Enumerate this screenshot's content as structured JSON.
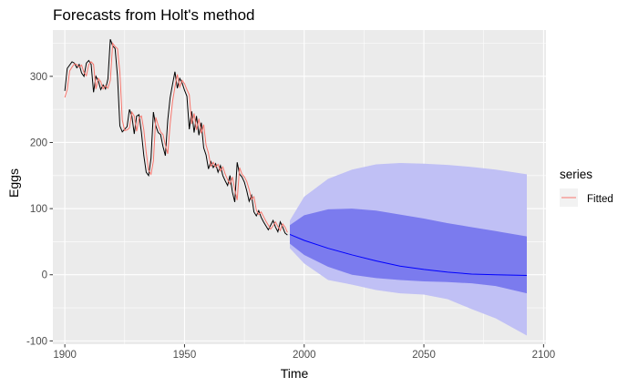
{
  "chart_data": {
    "type": "line",
    "title": "Forecasts from Holt's method",
    "xlabel": "Time",
    "ylabel": "Eggs",
    "xlim": [
      1895,
      2101
    ],
    "ylim": [
      -105,
      370
    ],
    "x_ticks": [
      1900,
      1950,
      2000,
      2050,
      2100
    ],
    "y_ticks": [
      -100,
      0,
      100,
      200,
      300
    ],
    "x_tick_labels": [
      "1900",
      "1950",
      "2000",
      "2050",
      "2100"
    ],
    "y_tick_labels": [
      "-100",
      "0",
      "100",
      "200",
      "300"
    ],
    "grid": true,
    "legend": {
      "title": "series",
      "position": "right",
      "entries": [
        {
          "label": "Fitted",
          "color": "#f8766d"
        }
      ]
    },
    "colors": {
      "panel": "#ebebeb",
      "grid_major": "#ffffff",
      "observed": "#000000",
      "fitted": "#f8766d",
      "forecast": "#0000ff",
      "band80": "#7b7bee",
      "band95": "#c0c0f5"
    },
    "observed": {
      "x": [
        1900,
        1901,
        1902,
        1903,
        1904,
        1905,
        1906,
        1907,
        1908,
        1909,
        1910,
        1911,
        1912,
        1913,
        1914,
        1915,
        1916,
        1917,
        1918,
        1919,
        1920,
        1921,
        1922,
        1923,
        1924,
        1925,
        1926,
        1927,
        1928,
        1929,
        1930,
        1931,
        1932,
        1933,
        1934,
        1935,
        1936,
        1937,
        1938,
        1939,
        1940,
        1941,
        1942,
        1943,
        1944,
        1945,
        1946,
        1947,
        1948,
        1949,
        1950,
        1951,
        1952,
        1953,
        1954,
        1955,
        1956,
        1957,
        1958,
        1959,
        1960,
        1961,
        1962,
        1963,
        1964,
        1965,
        1966,
        1967,
        1968,
        1969,
        1970,
        1971,
        1972,
        1973,
        1974,
        1975,
        1976,
        1977,
        1978,
        1979,
        1980,
        1981,
        1982,
        1983,
        1984,
        1985,
        1986,
        1987,
        1988,
        1989,
        1990,
        1991,
        1992,
        1993
      ],
      "y": [
        278,
        312,
        317,
        322,
        320,
        313,
        318,
        305,
        300,
        320,
        324,
        318,
        276,
        300,
        293,
        280,
        287,
        281,
        296,
        356,
        346,
        342,
        300,
        225,
        216,
        220,
        224,
        250,
        240,
        213,
        240,
        242,
        215,
        180,
        155,
        150,
        176,
        246,
        225,
        215,
        212,
        194,
        180,
        234,
        268,
        288,
        307,
        282,
        297,
        290,
        279,
        270,
        220,
        247,
        215,
        240,
        211,
        230,
        192,
        181,
        160,
        171,
        162,
        168,
        155,
        165,
        150,
        142,
        135,
        150,
        125,
        110,
        170,
        152,
        148,
        140,
        127,
        111,
        120,
        95,
        89,
        97,
        87,
        80,
        74,
        68,
        75,
        82,
        72,
        65,
        80,
        72,
        63,
        60
      ]
    },
    "fitted": {
      "x": [
        1900,
        1901,
        1902,
        1903,
        1904,
        1905,
        1906,
        1907,
        1908,
        1909,
        1910,
        1911,
        1912,
        1913,
        1914,
        1915,
        1916,
        1917,
        1918,
        1919,
        1920,
        1921,
        1922,
        1923,
        1924,
        1925,
        1926,
        1927,
        1928,
        1929,
        1930,
        1931,
        1932,
        1933,
        1934,
        1935,
        1936,
        1937,
        1938,
        1939,
        1940,
        1941,
        1942,
        1943,
        1944,
        1945,
        1946,
        1947,
        1948,
        1949,
        1950,
        1951,
        1952,
        1953,
        1954,
        1955,
        1956,
        1957,
        1958,
        1959,
        1960,
        1961,
        1962,
        1963,
        1964,
        1965,
        1966,
        1967,
        1968,
        1969,
        1970,
        1971,
        1972,
        1973,
        1974,
        1975,
        1976,
        1977,
        1978,
        1979,
        1980,
        1981,
        1982,
        1983,
        1984,
        1985,
        1986,
        1987,
        1988,
        1989,
        1990,
        1991,
        1992,
        1993
      ],
      "y": [
        268,
        280,
        308,
        314,
        319,
        318,
        314,
        317,
        306,
        301,
        318,
        322,
        318,
        281,
        297,
        292,
        281,
        286,
        282,
        294,
        350,
        345,
        342,
        306,
        234,
        218,
        219,
        222,
        246,
        240,
        217,
        237,
        240,
        219,
        185,
        158,
        152,
        172,
        238,
        226,
        216,
        212,
        196,
        183,
        228,
        262,
        284,
        303,
        284,
        294,
        289,
        280,
        272,
        228,
        244,
        219,
        236,
        214,
        227,
        196,
        184,
        164,
        170,
        163,
        167,
        157,
        163,
        152,
        144,
        137,
        148,
        128,
        113,
        162,
        152,
        148,
        141,
        129,
        114,
        118,
        98,
        91,
        95,
        88,
        81,
        75,
        69,
        74,
        80,
        73,
        67,
        77,
        72,
        64
      ]
    },
    "forecast": {
      "x": [
        1994,
        2000,
        2010,
        2020,
        2030,
        2040,
        2050,
        2060,
        2070,
        2080,
        2093
      ],
      "point": [
        61,
        52,
        40,
        30,
        21,
        13,
        8,
        4,
        1,
        0,
        -1
      ],
      "lo80": [
        47,
        30,
        12,
        0,
        -5,
        -8,
        -10,
        -11,
        -13,
        -17,
        -28
      ],
      "hi80": [
        75,
        90,
        99,
        100,
        97,
        91,
        85,
        78,
        72,
        66,
        58
      ],
      "lo95": [
        40,
        17,
        -8,
        -15,
        -23,
        -28,
        -30,
        -37,
        -52,
        -66,
        -92
      ],
      "hi95": [
        82,
        118,
        145,
        159,
        167,
        169,
        168,
        166,
        163,
        159,
        152
      ]
    }
  }
}
